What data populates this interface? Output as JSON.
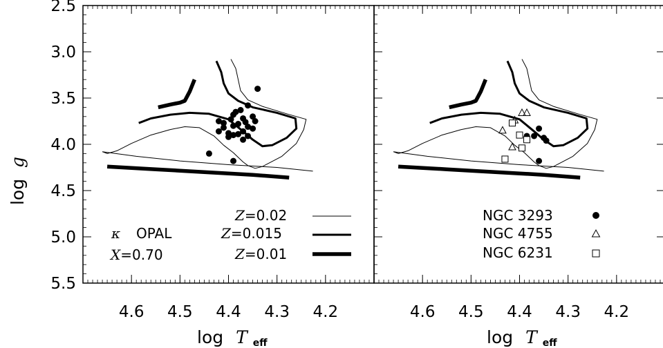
{
  "chart_data": [
    {
      "type": "line",
      "panel": "left",
      "xlabel": "log T_eff",
      "ylabel": "log g",
      "xlim": [
        4.7,
        4.1
      ],
      "ylim": [
        5.5,
        2.5
      ],
      "x_ticks": [
        4.6,
        4.5,
        4.4,
        4.3,
        4.2
      ],
      "y_ticks": [
        2.5,
        3.0,
        3.5,
        4.0,
        4.5,
        5.0,
        5.5
      ],
      "grid": false,
      "series": [
        {
          "name": "Z=0.02",
          "style": "thin",
          "segments": [
            [
              [
                4.66,
                4.08
              ],
              [
                4.65,
                4.1
              ],
              [
                4.63,
                4.07
              ],
              [
                4.6,
                3.99
              ],
              [
                4.56,
                3.9
              ],
              [
                4.52,
                3.84
              ],
              [
                4.49,
                3.81
              ],
              [
                4.46,
                3.82
              ],
              [
                4.43,
                3.91
              ],
              [
                4.41,
                4.01
              ],
              [
                4.39,
                4.09
              ],
              [
                4.37,
                4.19
              ],
              [
                4.36,
                4.23
              ],
              [
                4.345,
                4.26
              ],
              [
                4.33,
                4.24
              ],
              [
                4.29,
                4.13
              ],
              [
                4.26,
                3.99
              ],
              [
                4.245,
                3.84
              ],
              [
                4.24,
                3.73
              ],
              [
                4.28,
                3.67
              ],
              [
                4.33,
                3.59
              ],
              [
                4.36,
                3.52
              ],
              [
                4.375,
                3.42
              ],
              [
                4.38,
                3.3
              ],
              [
                4.385,
                3.18
              ],
              [
                4.395,
                3.08
              ]
            ],
            [
              [
                4.66,
                4.08
              ],
              [
                4.59,
                4.13
              ],
              [
                4.5,
                4.18
              ],
              [
                4.4,
                4.22
              ],
              [
                4.3,
                4.25
              ],
              [
                4.226,
                4.29
              ]
            ]
          ]
        },
        {
          "name": "Z=0.015",
          "style": "medium",
          "segments": [
            [
              [
                4.585,
                3.77
              ],
              [
                4.56,
                3.72
              ],
              [
                4.52,
                3.68
              ],
              [
                4.48,
                3.66
              ],
              [
                4.44,
                3.67
              ],
              [
                4.4,
                3.73
              ],
              [
                4.37,
                3.86
              ],
              [
                4.35,
                3.95
              ],
              [
                4.33,
                4.02
              ],
              [
                4.31,
                4.01
              ],
              [
                4.28,
                3.93
              ],
              [
                4.26,
                3.83
              ],
              [
                4.262,
                3.72
              ],
              [
                4.3,
                3.66
              ],
              [
                4.35,
                3.6
              ],
              [
                4.38,
                3.53
              ],
              [
                4.4,
                3.45
              ],
              [
                4.41,
                3.34
              ],
              [
                4.415,
                3.22
              ],
              [
                4.425,
                3.1
              ]
            ]
          ]
        },
        {
          "name": "Z=0.01",
          "style": "thick",
          "segments": [
            [
              [
                4.545,
                3.6
              ],
              [
                4.52,
                3.57
              ],
              [
                4.5,
                3.55
              ],
              [
                4.49,
                3.53
              ],
              [
                4.48,
                3.43
              ],
              [
                4.47,
                3.3
              ]
            ],
            [
              [
                4.65,
                4.24
              ],
              [
                4.55,
                4.27
              ],
              [
                4.45,
                4.3
              ],
              [
                4.35,
                4.33
              ],
              [
                4.275,
                4.36
              ]
            ]
          ]
        }
      ],
      "points": {
        "marker": "filled-circle",
        "x": [
          4.34,
          4.36,
          4.375,
          4.385,
          4.39,
          4.35,
          4.37,
          4.395,
          4.42,
          4.41,
          4.345,
          4.365,
          4.38,
          4.39,
          4.41,
          4.36,
          4.35,
          4.37,
          4.42,
          4.4,
          4.38,
          4.39,
          4.36,
          4.4,
          4.37,
          4.44,
          4.39
        ],
        "y": [
          3.4,
          3.58,
          3.63,
          3.65,
          3.68,
          3.7,
          3.72,
          3.73,
          3.75,
          3.77,
          3.75,
          3.76,
          3.78,
          3.8,
          3.82,
          3.81,
          3.83,
          3.86,
          3.86,
          3.88,
          3.89,
          3.9,
          3.91,
          3.92,
          3.95,
          4.1,
          4.18
        ]
      },
      "annotations": {
        "kappa_symbol": "κ",
        "opal": "OPAL",
        "x_var": "X",
        "x_value": "=0.70"
      },
      "legend": {
        "placement": "bottom-right",
        "var": "Z",
        "entries": [
          {
            "value": "=0.02",
            "style": "thin"
          },
          {
            "value": "=0.015",
            "style": "medium"
          },
          {
            "value": "=0.01",
            "style": "thick"
          }
        ]
      }
    },
    {
      "type": "scatter",
      "panel": "right",
      "xlabel": "log T_eff",
      "xlim": [
        4.7,
        4.1
      ],
      "ylim": [
        5.5,
        2.5
      ],
      "x_ticks": [
        4.6,
        4.5,
        4.4,
        4.3,
        4.2
      ],
      "grid": false,
      "series": [
        {
          "name": "NGC 3293",
          "marker": "filled-circle",
          "x": [
            4.36,
            4.35,
            4.37,
            4.385,
            4.345,
            4.36
          ],
          "y": [
            3.83,
            3.93,
            3.91,
            3.91,
            3.96,
            4.18
          ]
        },
        {
          "name": "NGC 4755",
          "marker": "open-triangle",
          "x": [
            4.395,
            4.385,
            4.41,
            4.435,
            4.415
          ],
          "y": [
            3.66,
            3.66,
            3.74,
            3.85,
            4.03
          ]
        },
        {
          "name": "NGC 6231",
          "marker": "open-square",
          "x": [
            4.415,
            4.4,
            4.385,
            4.395,
            4.43
          ],
          "y": [
            3.77,
            3.9,
            3.95,
            4.04,
            4.16
          ]
        }
      ]
    }
  ],
  "axes": {
    "xlabel_main": "log",
    "xlabel_var": "T",
    "xlabel_sub": "eff",
    "ylabel_main": "log",
    "ylabel_var": "g"
  }
}
